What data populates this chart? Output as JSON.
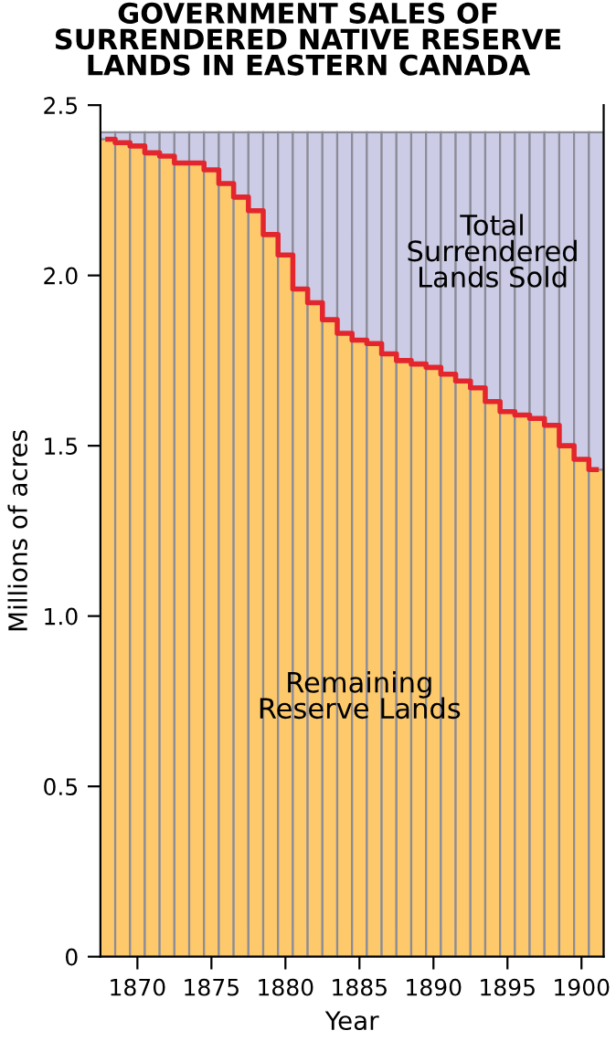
{
  "chart_data": {
    "type": "bar",
    "stacked": true,
    "title": "GOVERNMENT SALES OF\nSURRENDERED NATIVE RESERVE\nLANDS IN EASTERN CANADA",
    "xlabel": "Year",
    "ylabel": "Millions of acres",
    "x": [
      1868,
      1869,
      1870,
      1871,
      1872,
      1873,
      1874,
      1875,
      1876,
      1877,
      1878,
      1879,
      1880,
      1881,
      1882,
      1883,
      1884,
      1885,
      1886,
      1887,
      1888,
      1889,
      1890,
      1891,
      1892,
      1893,
      1894,
      1895,
      1896,
      1897,
      1898,
      1899,
      1900,
      1901
    ],
    "series": [
      {
        "name": "Remaining\nReserve Lands",
        "color": "#fdc96a",
        "values": [
          2.4,
          2.39,
          2.38,
          2.36,
          2.35,
          2.33,
          2.33,
          2.31,
          2.27,
          2.23,
          2.19,
          2.12,
          2.06,
          1.96,
          1.92,
          1.87,
          1.83,
          1.81,
          1.8,
          1.77,
          1.75,
          1.74,
          1.73,
          1.71,
          1.69,
          1.67,
          1.63,
          1.6,
          1.59,
          1.58,
          1.56,
          1.5,
          1.46,
          1.43
        ]
      },
      {
        "name": "Total\nSurrendered\nLands Sold",
        "color": "#cccce6",
        "values": [
          0.02,
          0.03,
          0.04,
          0.06,
          0.07,
          0.09,
          0.09,
          0.11,
          0.15,
          0.19,
          0.23,
          0.3,
          0.36,
          0.46,
          0.5,
          0.55,
          0.59,
          0.61,
          0.62,
          0.65,
          0.67,
          0.68,
          0.69,
          0.71,
          0.73,
          0.75,
          0.79,
          0.82,
          0.83,
          0.84,
          0.86,
          0.92,
          0.96,
          0.99
        ]
      },
      {
        "type": "step",
        "color": "#e3262e",
        "values": [
          2.4,
          2.39,
          2.38,
          2.36,
          2.35,
          2.33,
          2.33,
          2.31,
          2.27,
          2.23,
          2.19,
          2.12,
          2.06,
          1.96,
          1.92,
          1.87,
          1.83,
          1.81,
          1.8,
          1.77,
          1.75,
          1.74,
          1.73,
          1.71,
          1.69,
          1.67,
          1.63,
          1.6,
          1.59,
          1.58,
          1.56,
          1.5,
          1.46,
          1.43
        ]
      }
    ],
    "xlim": [
      1867.5,
      1901.5
    ],
    "xticks": [
      1870,
      1875,
      1880,
      1885,
      1890,
      1895,
      1900
    ],
    "ylim": [
      0,
      2.5
    ],
    "yticks": [
      0,
      0.5,
      {
        "value": 1,
        "label": "1.0"
      },
      1.5,
      {
        "value": 2,
        "label": "2.0"
      },
      2.5
    ],
    "grid": false,
    "legend": false
  }
}
